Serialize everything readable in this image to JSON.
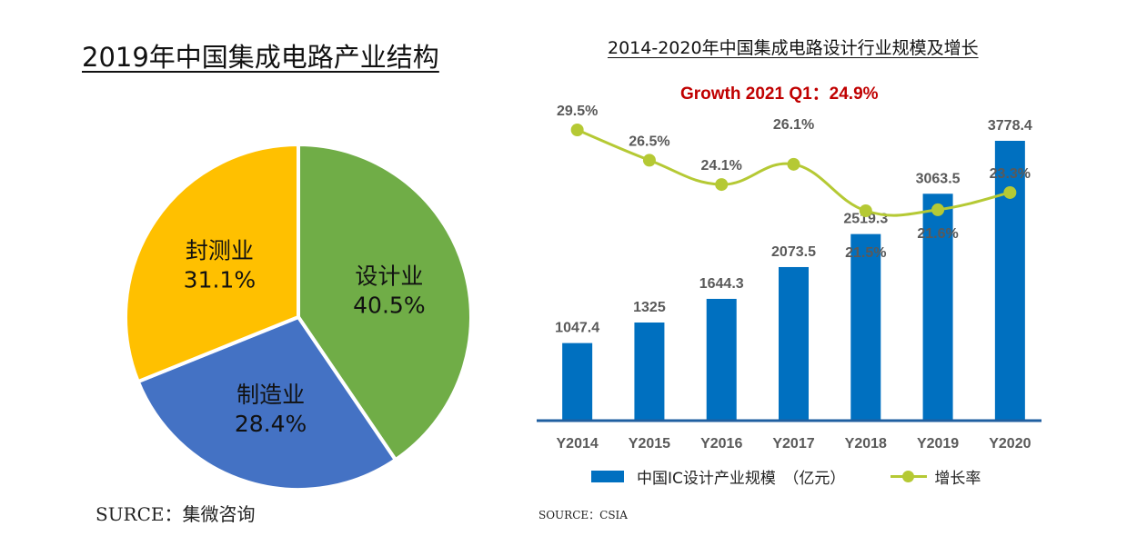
{
  "chart_data": [
    {
      "type": "pie",
      "title": "2019年中国集成电路产业结构",
      "source": "SURCE：集微咨询",
      "slices": [
        {
          "label": "设计业",
          "value": 40.5,
          "display": "40.5%",
          "color": "#70ad47"
        },
        {
          "label": "制造业",
          "value": 28.4,
          "display": "28.4%",
          "color": "#4472c4"
        },
        {
          "label": "封测业",
          "value": 31.1,
          "display": "31.1%",
          "color": "#ffc000"
        }
      ]
    },
    {
      "type": "bar",
      "title": "2014-2020年中国集成电路设计行业规模及增长",
      "annotation": "Growth 2021 Q1：24.9%",
      "source": "SOURCE：CSIA",
      "categories": [
        "Y2014",
        "Y2015",
        "Y2016",
        "Y2017",
        "Y2018",
        "Y2019",
        "Y2020"
      ],
      "series": [
        {
          "name": "中国IC设计产业规模　（亿元）",
          "type": "bar",
          "color": "#0070c0",
          "values": [
            1047.4,
            1325,
            1644.3,
            2073.5,
            2519.3,
            3063.5,
            3778.4
          ],
          "labels": [
            "1047.4",
            "1325",
            "1644.3",
            "2073.5",
            "2519.3",
            "3063.5",
            "3778.4"
          ]
        },
        {
          "name": "增长率",
          "type": "line",
          "color": "#b5c934",
          "values": [
            29.5,
            26.5,
            24.1,
            26.1,
            21.5,
            21.6,
            23.3
          ],
          "labels": [
            "29.5%",
            "26.5%",
            "24.1%",
            "26.1%",
            "21.5%",
            "21.6%",
            "23.3%"
          ]
        }
      ],
      "ylim_bar": [
        0,
        4000
      ],
      "ylim_line": [
        15,
        32
      ],
      "grid": false,
      "legend": "bottom"
    }
  ]
}
